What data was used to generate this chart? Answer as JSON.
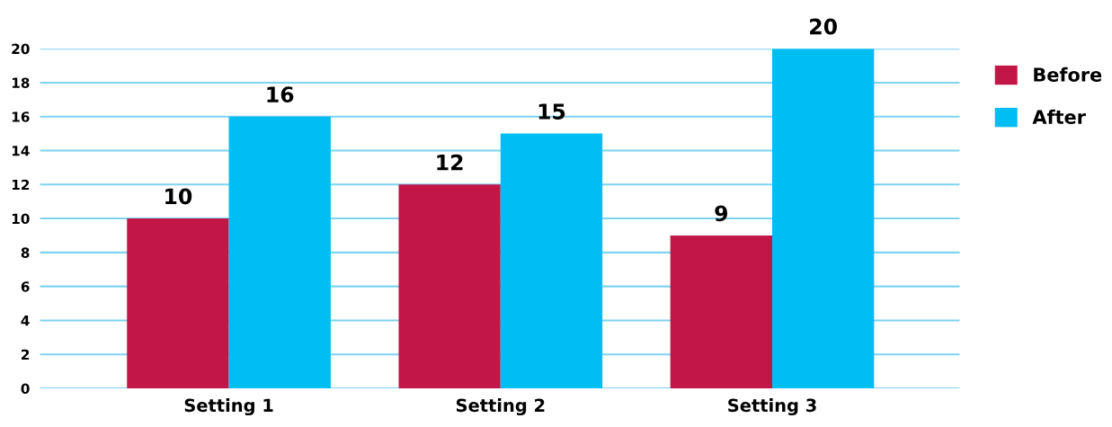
{
  "chart_data": {
    "type": "bar",
    "categories": [
      "Setting 1",
      "Setting 2",
      "Setting 3"
    ],
    "series": [
      {
        "name": "Before",
        "color": "#c21746",
        "values": [
          10,
          12,
          9
        ]
      },
      {
        "name": "After",
        "color": "#00bdf2",
        "values": [
          16,
          15,
          20
        ]
      }
    ],
    "ylim": [
      0,
      20
    ],
    "yticks": [
      0,
      2,
      4,
      6,
      8,
      10,
      12,
      14,
      16,
      18,
      20
    ],
    "grid": "y",
    "legend": "top right",
    "data_labels": true
  }
}
